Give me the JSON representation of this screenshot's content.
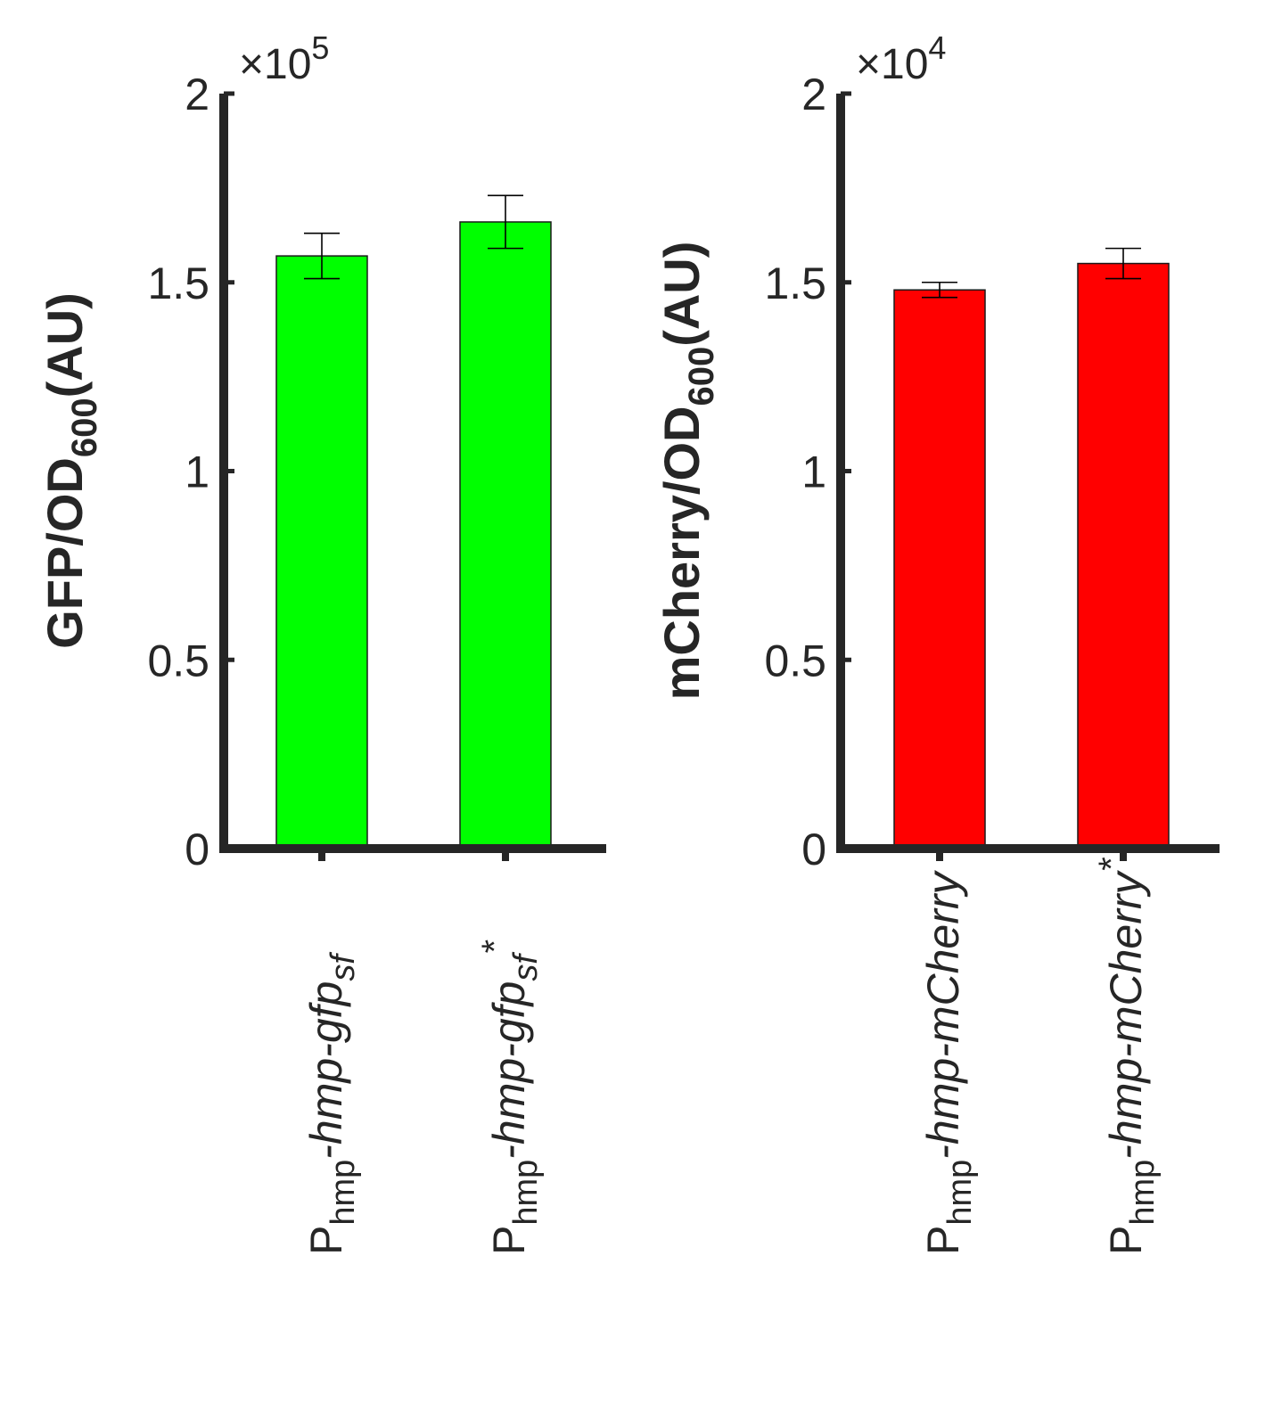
{
  "chart_data": [
    {
      "type": "bar",
      "ylabel": {
        "main": "GFP/OD",
        "sub": "600",
        "unit": "(AU)"
      },
      "multiplier": {
        "base": "×10",
        "exp": "5"
      },
      "ylim": [
        0,
        2
      ],
      "yticks": [
        {
          "value": 0,
          "label": "0"
        },
        {
          "value": 0.5,
          "label": "0.5"
        },
        {
          "value": 1,
          "label": "1"
        },
        {
          "value": 1.5,
          "label": "1.5"
        },
        {
          "value": 2,
          "label": "2"
        }
      ],
      "categories": [
        {
          "p": "P",
          "psub": "hmp",
          "rest": "-hmp-gfp",
          "sub": "sf",
          "sup": ""
        },
        {
          "p": "P",
          "psub": "hmp",
          "rest": "-hmp-gfp",
          "sub": "sf",
          "sup": "*"
        }
      ],
      "values": [
        1.57,
        1.66
      ],
      "errors": [
        0.06,
        0.07
      ],
      "color": "#00ff00"
    },
    {
      "type": "bar",
      "ylabel": {
        "main": "mCherry/OD",
        "sub": "600",
        "unit": "(AU)"
      },
      "multiplier": {
        "base": "×10",
        "exp": "4"
      },
      "ylim": [
        0,
        2
      ],
      "yticks": [
        {
          "value": 0,
          "label": "0"
        },
        {
          "value": 0.5,
          "label": "0.5"
        },
        {
          "value": 1,
          "label": "1"
        },
        {
          "value": 1.5,
          "label": "1.5"
        },
        {
          "value": 2,
          "label": "2"
        }
      ],
      "categories": [
        {
          "p": "P",
          "psub": "hmp",
          "rest": "-hmp-mCherry",
          "sub": "",
          "sup": ""
        },
        {
          "p": "P",
          "psub": "hmp",
          "rest": "-hmp-mCherry",
          "sub": "",
          "sup": "*"
        }
      ],
      "values": [
        1.48,
        1.55
      ],
      "errors": [
        0.02,
        0.04
      ],
      "color": "#ff0000"
    }
  ]
}
